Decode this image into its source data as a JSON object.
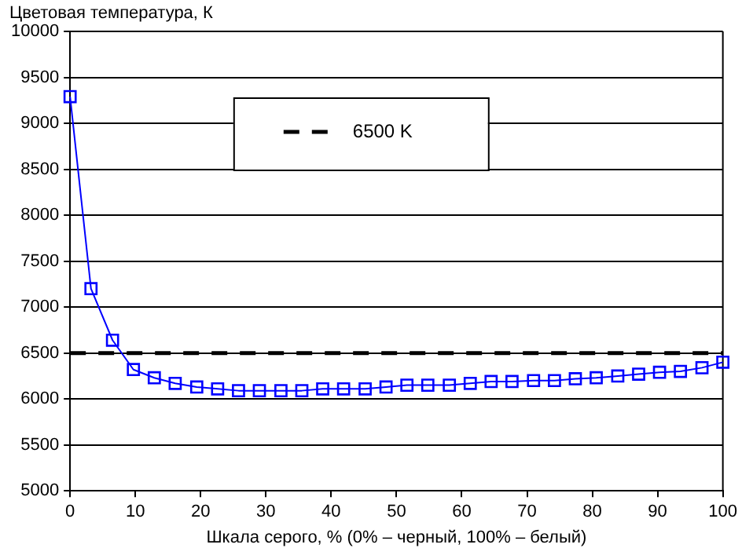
{
  "chart_data": {
    "type": "line",
    "ylabel": "Цветовая температура, К",
    "xlabel": "Шкала серого, % (0% – черный, 100% – белый)",
    "x": [
      0,
      3.2,
      6.5,
      9.7,
      12.9,
      16.1,
      19.4,
      22.6,
      25.8,
      29,
      32.3,
      35.5,
      38.7,
      41.9,
      45.2,
      48.4,
      51.6,
      54.8,
      58.1,
      61.3,
      64.5,
      67.7,
      71,
      74.2,
      77.4,
      80.6,
      83.9,
      87.1,
      90.3,
      93.5,
      96.8,
      100
    ],
    "series": [
      {
        "color": "#0000ff",
        "values": [
          9290,
          7200,
          6640,
          6320,
          6230,
          6170,
          6130,
          6110,
          6090,
          6090,
          6090,
          6090,
          6110,
          6110,
          6110,
          6130,
          6150,
          6150,
          6150,
          6170,
          6190,
          6190,
          6200,
          6200,
          6220,
          6230,
          6250,
          6270,
          6290,
          6300,
          6340,
          6400
        ]
      }
    ],
    "ref_lines": [
      {
        "axis": "y",
        "value": 6500,
        "label": "6500 K",
        "color": "#000000",
        "line_style": "dashed"
      }
    ],
    "xlim": [
      0,
      100
    ],
    "xticks": [
      0,
      10,
      20,
      30,
      40,
      50,
      60,
      70,
      80,
      90,
      100
    ],
    "ylim": [
      5000,
      10000
    ],
    "yticks": [
      5000,
      5500,
      6000,
      6500,
      7000,
      7500,
      8000,
      8500,
      9000,
      9500,
      10000
    ],
    "grid": "y",
    "legend": "top",
    "marker": "square",
    "line_style": "solid"
  }
}
